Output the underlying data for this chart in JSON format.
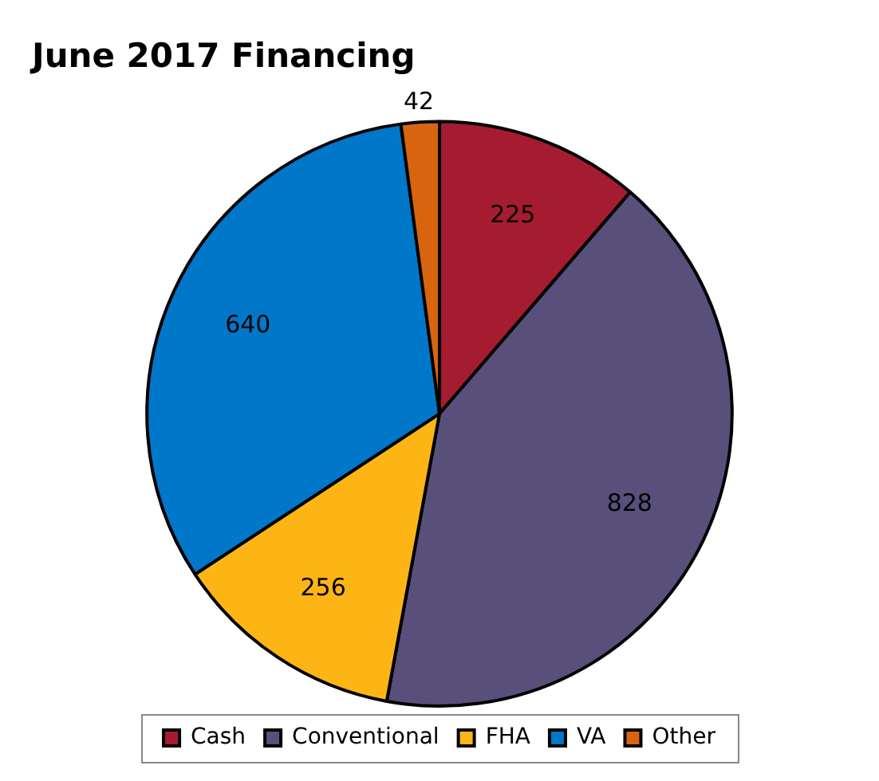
{
  "chart_data": {
    "type": "pie",
    "title": "June 2017 Financing",
    "categories": [
      "Cash",
      "Conventional",
      "FHA",
      "VA",
      "Other"
    ],
    "values": [
      225,
      828,
      256,
      640,
      42
    ],
    "colors": [
      "#a51c30",
      "#58507a",
      "#fdb515",
      "#0077c8",
      "#d9640f"
    ],
    "data_labels": true,
    "legend": "bottom"
  }
}
